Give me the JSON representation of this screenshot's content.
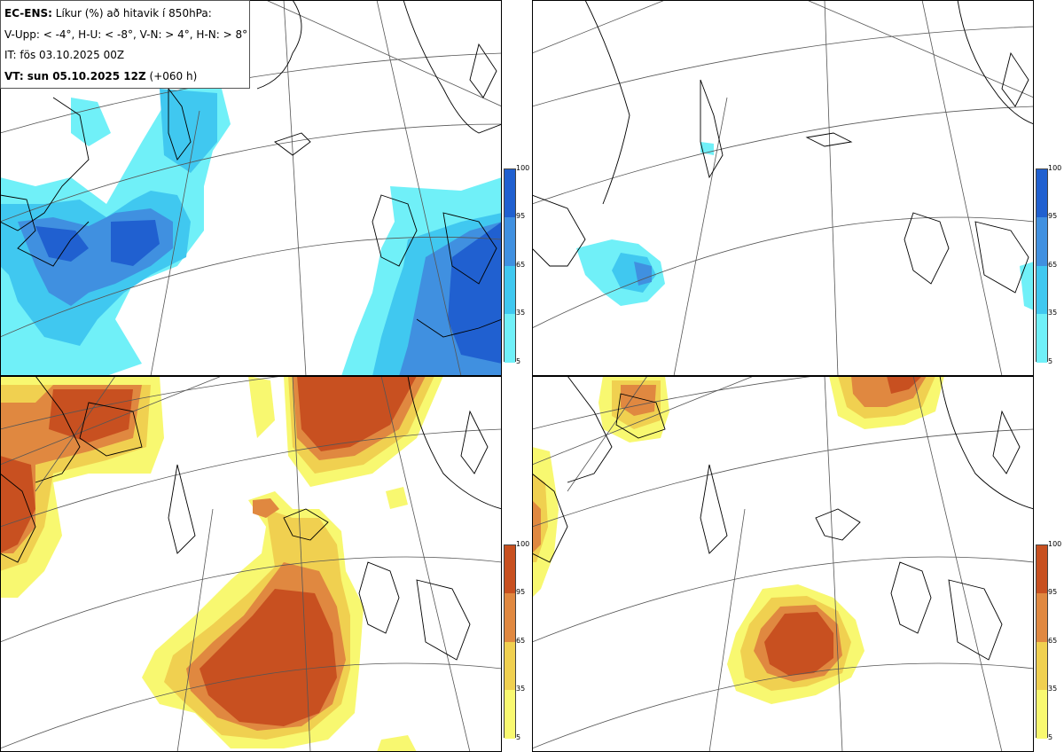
{
  "header": {
    "model": "EC-ENS:",
    "title": "Líkur (%) að hitavik í 850hPa:",
    "thresholds": "V-Upp: < -4°, H-U: < -8°, V-N: > 4°, H-N: > 8°",
    "init_time": "IT: fös 03.10.2025 00Z",
    "valid_label": "VT: sun 05.10.2025 12Z",
    "lead_time": "(+060 h)"
  },
  "colorbar": {
    "ticks": [
      "100",
      "95",
      "65",
      "35",
      "5"
    ],
    "cold_colors": [
      "#70f0f8",
      "#40c8f0",
      "#4090e0",
      "#2060d0"
    ],
    "warm_colors": [
      "#f8f870",
      "#f0d050",
      "#e08840",
      "#c85020"
    ]
  },
  "panels": [
    {
      "id": "cold-4",
      "scheme": "cold"
    },
    {
      "id": "cold-8",
      "scheme": "cold"
    },
    {
      "id": "warm-4",
      "scheme": "warm"
    },
    {
      "id": "warm-8",
      "scheme": "warm"
    }
  ]
}
